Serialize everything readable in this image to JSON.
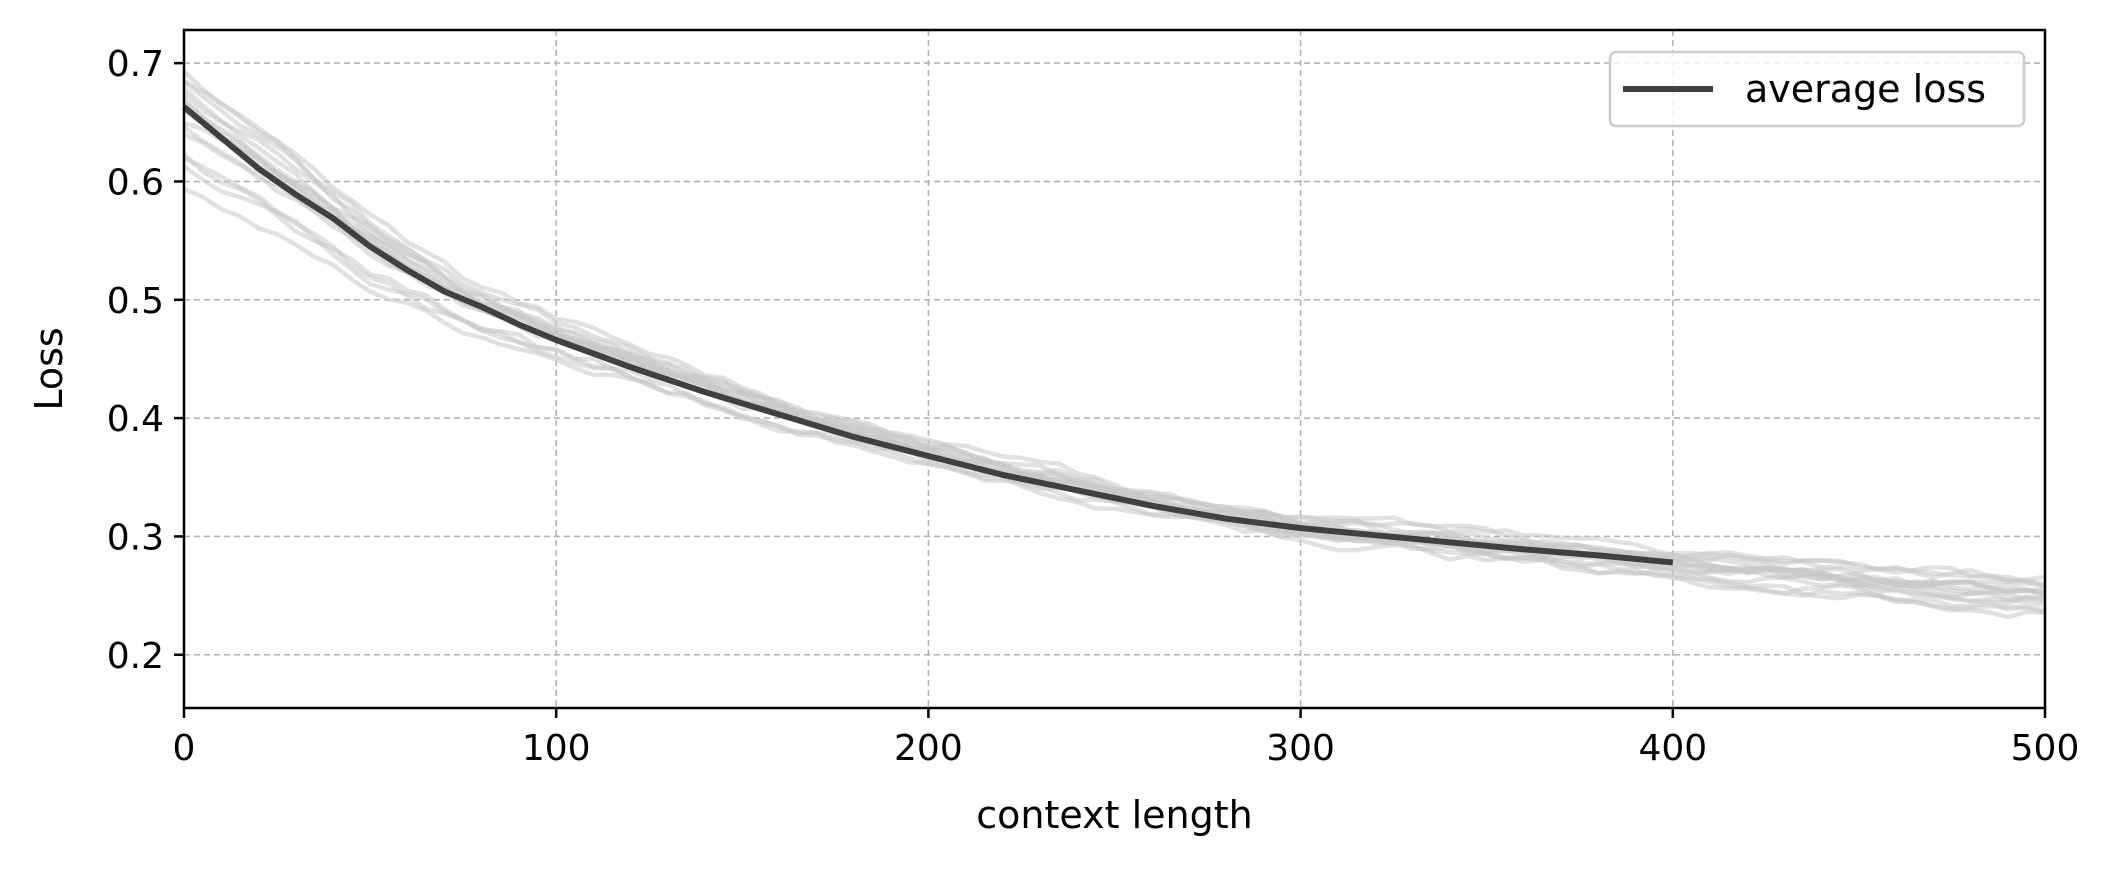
{
  "chart_data": {
    "type": "line",
    "title": "",
    "xlabel": "context length",
    "ylabel": "Loss",
    "xlim": [
      0,
      500
    ],
    "ylim": [
      0.155,
      0.728
    ],
    "xticks": [
      0,
      100,
      200,
      300,
      400,
      500
    ],
    "yticks": [
      0.2,
      0.3,
      0.4,
      0.5,
      0.6,
      0.7
    ],
    "grid": true,
    "legend": {
      "position": "top-right",
      "entries": [
        "average loss"
      ]
    },
    "colors": {
      "average": "#404040",
      "runs": "#c8c8c8",
      "grid": "#b0b0b0"
    },
    "series": [
      {
        "name": "average loss",
        "x": [
          0,
          10,
          20,
          30,
          40,
          50,
          60,
          70,
          80,
          90,
          100,
          120,
          140,
          160,
          180,
          200,
          220,
          240,
          260,
          280,
          300,
          320,
          340,
          360,
          380,
          400
        ],
        "y": [
          0.663,
          0.637,
          0.611,
          0.589,
          0.569,
          0.545,
          0.525,
          0.507,
          0.494,
          0.479,
          0.466,
          0.443,
          0.422,
          0.403,
          0.384,
          0.368,
          0.352,
          0.339,
          0.326,
          0.315,
          0.307,
          0.301,
          0.295,
          0.289,
          0.284,
          0.278
        ]
      }
    ],
    "background_runs": {
      "count": 16,
      "x": [
        0,
        25,
        50,
        75,
        100,
        125,
        150,
        175,
        200,
        225,
        250,
        275,
        300,
        325,
        350,
        375,
        400,
        425,
        450,
        475,
        500
      ],
      "y_min": [
        0.592,
        0.548,
        0.503,
        0.471,
        0.448,
        0.428,
        0.401,
        0.379,
        0.359,
        0.342,
        0.325,
        0.309,
        0.296,
        0.287,
        0.276,
        0.268,
        0.261,
        0.252,
        0.246,
        0.24,
        0.235
      ],
      "y_max": [
        0.708,
        0.648,
        0.58,
        0.526,
        0.49,
        0.458,
        0.43,
        0.404,
        0.383,
        0.365,
        0.347,
        0.331,
        0.318,
        0.311,
        0.304,
        0.298,
        0.292,
        0.289,
        0.28,
        0.273,
        0.265
      ]
    }
  }
}
